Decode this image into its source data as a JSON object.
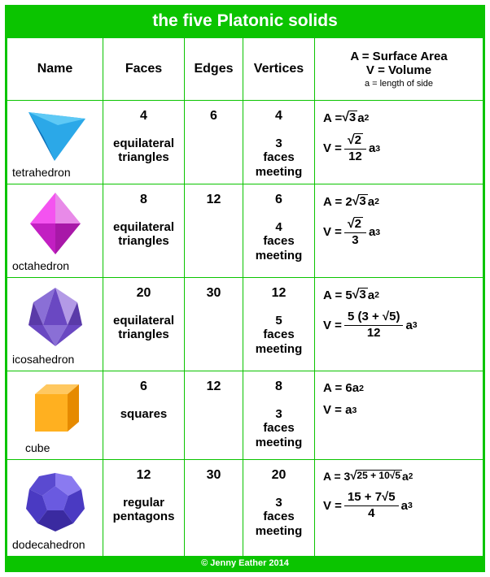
{
  "title": "the five Platonic solids",
  "footer": "© Jenny Eather 2014",
  "colors": {
    "accent": "#0bc400",
    "tetra": [
      "#2ba8e8",
      "#0e6fb8",
      "#5ec9f5"
    ],
    "octa": [
      "#f453f0",
      "#c21fc2",
      "#e88ae8",
      "#a818a8"
    ],
    "icosa": [
      "#8a6fd6",
      "#6a48c2",
      "#b39ae6",
      "#5a3aa8"
    ],
    "cube": [
      "#ffb020",
      "#e68a00",
      "#ffc860"
    ],
    "dodeca": [
      "#6a5ae0",
      "#4a3ac2",
      "#8a7af0",
      "#3a2aa0",
      "#5a4ad0"
    ]
  },
  "headers": {
    "name": "Name",
    "faces": "Faces",
    "edges": "Edges",
    "vertices": "Vertices",
    "formula_l1": "A = Surface Area",
    "formula_l2": "V = Volume",
    "formula_l3": "a = length of side"
  },
  "rows": [
    {
      "name": "tetrahedron",
      "faces_n": "4",
      "faces_type": "equilateral triangles",
      "edges": "6",
      "vertices_n": "4",
      "vertices_note": "3 faces meeting",
      "A_pre": "A =  ",
      "A_sq": "3",
      "A_post": " a",
      "A_exp": "2",
      "V_pre": "V =   ",
      "V_frac_num_sq": "2",
      "V_frac_den": "12",
      "V_post": " a",
      "V_exp": "3"
    },
    {
      "name": "octahedron",
      "faces_n": "8",
      "faces_type": "equilateral triangles",
      "edges": "12",
      "vertices_n": "6",
      "vertices_note": "4 faces meeting",
      "A_pre": "A =  2",
      "A_sq": "3",
      "A_post": " a",
      "A_exp": "2",
      "V_pre": "V =   ",
      "V_frac_num_sq": "2",
      "V_frac_den": "3",
      "V_post": " a",
      "V_exp": "3"
    },
    {
      "name": "icosahedron",
      "faces_n": "20",
      "faces_type": "equilateral triangles",
      "edges": "30",
      "vertices_n": "12",
      "vertices_note": "5 faces meeting",
      "A_pre": "A =  5",
      "A_sq": "3",
      "A_post": " a",
      "A_exp": "2",
      "V_pre": "V =   ",
      "V_frac_num_txt": "5 (3 + √5)",
      "V_frac_den": "12",
      "V_post": " a",
      "V_exp": "3"
    },
    {
      "name": "cube",
      "faces_n": "6",
      "faces_type": "squares",
      "edges": "12",
      "vertices_n": "8",
      "vertices_note": "3 faces meeting",
      "A_simple": "A =  6a",
      "A_exp": "2",
      "V_simple": "V =  a",
      "V_exp": "3"
    },
    {
      "name": "dodecahedron",
      "faces_n": "12",
      "faces_type": "regular pentagons",
      "edges": "30",
      "vertices_n": "20",
      "vertices_note": "3 faces meeting",
      "A_pre": "A = 3",
      "A_sq": "25 + 10√5",
      "A_post": " a",
      "A_exp": "2",
      "V_pre": "V = ",
      "V_frac_num_txt": "15 + 7√5",
      "V_frac_den": "4",
      "V_post": " a",
      "V_exp": "3"
    }
  ]
}
